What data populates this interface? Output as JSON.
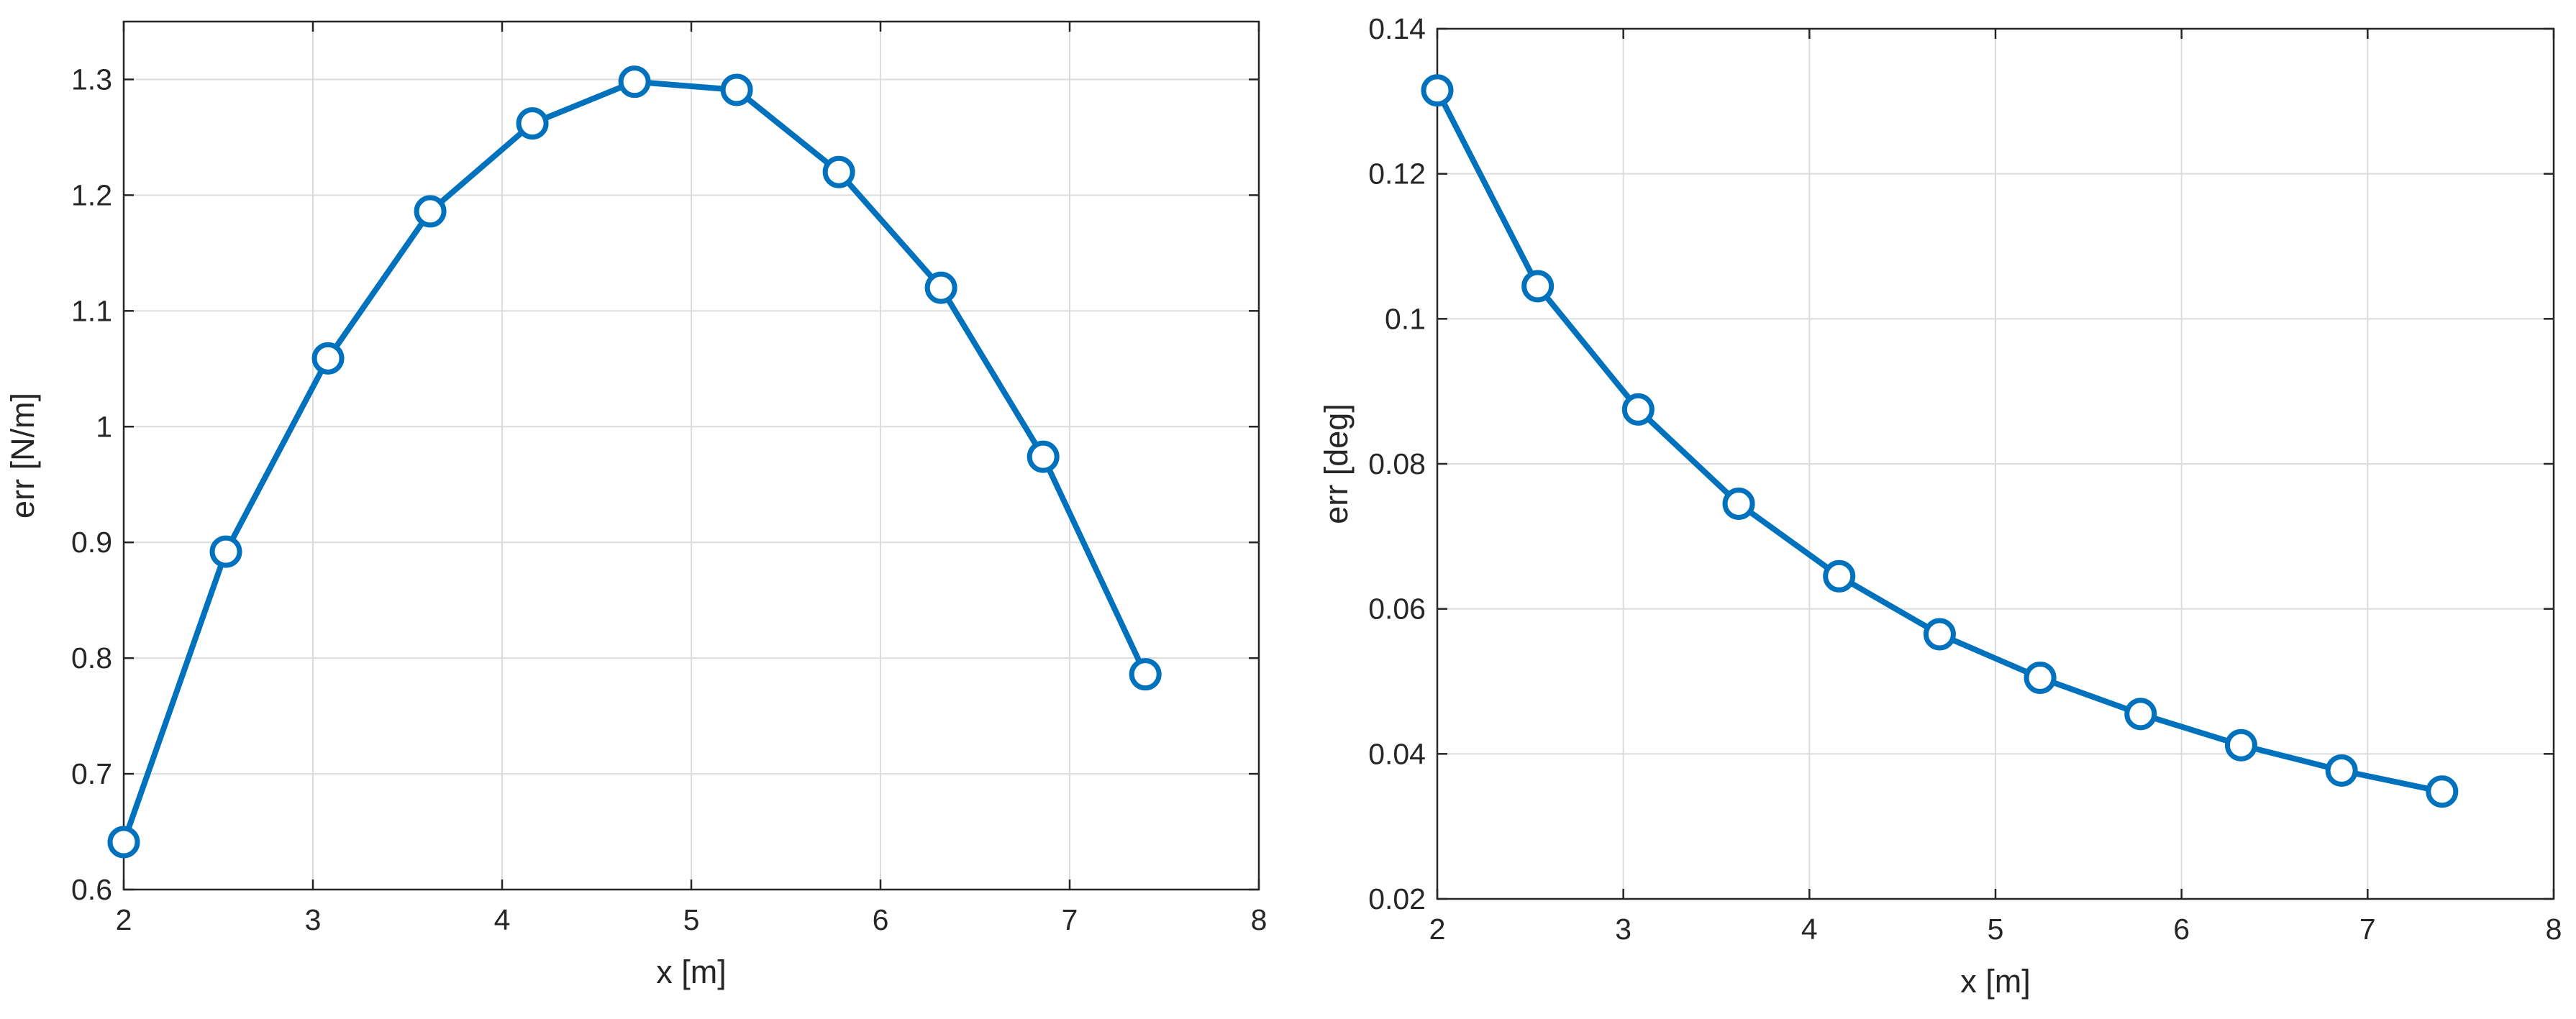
{
  "chart_data": [
    {
      "type": "line",
      "xlabel": "x [m]",
      "ylabel": "err [N/m]",
      "xlim": [
        2,
        8
      ],
      "ylim": [
        0.6,
        1.35
      ],
      "xticks": [
        2,
        3,
        4,
        5,
        6,
        7,
        8
      ],
      "yticks": [
        0.6,
        0.7,
        0.8,
        0.9,
        1.0,
        1.1,
        1.2,
        1.3
      ],
      "ytick_labels": [
        "0.6",
        "0.7",
        "0.8",
        "0.9",
        "1",
        "1.1",
        "1.2",
        "1.3"
      ],
      "grid": true,
      "color": "#0072BD",
      "marker": "circle",
      "series": [
        {
          "x": [
            2.0,
            2.54,
            3.08,
            3.62,
            4.16,
            4.7,
            5.24,
            5.78,
            6.32,
            6.86,
            7.4
          ],
          "values": [
            0.641,
            0.892,
            1.059,
            1.186,
            1.262,
            1.298,
            1.291,
            1.22,
            1.12,
            0.974,
            0.786
          ]
        }
      ]
    },
    {
      "type": "line",
      "xlabel": "x [m]",
      "ylabel": "err [deg]",
      "xlim": [
        2,
        8
      ],
      "ylim": [
        0.02,
        0.14
      ],
      "xticks": [
        2,
        3,
        4,
        5,
        6,
        7,
        8
      ],
      "yticks": [
        0.02,
        0.04,
        0.06,
        0.08,
        0.1,
        0.12,
        0.14
      ],
      "ytick_labels": [
        "0.02",
        "0.04",
        "0.06",
        "0.08",
        "0.1",
        "0.12",
        "0.14"
      ],
      "grid": true,
      "color": "#0072BD",
      "marker": "circle",
      "series": [
        {
          "x": [
            2.0,
            2.54,
            3.08,
            3.62,
            4.16,
            4.7,
            5.24,
            5.78,
            6.32,
            6.86,
            7.4
          ],
          "values": [
            0.1315,
            0.1045,
            0.0875,
            0.0745,
            0.0645,
            0.0565,
            0.0505,
            0.0455,
            0.0412,
            0.0377,
            0.0348
          ]
        }
      ]
    }
  ]
}
